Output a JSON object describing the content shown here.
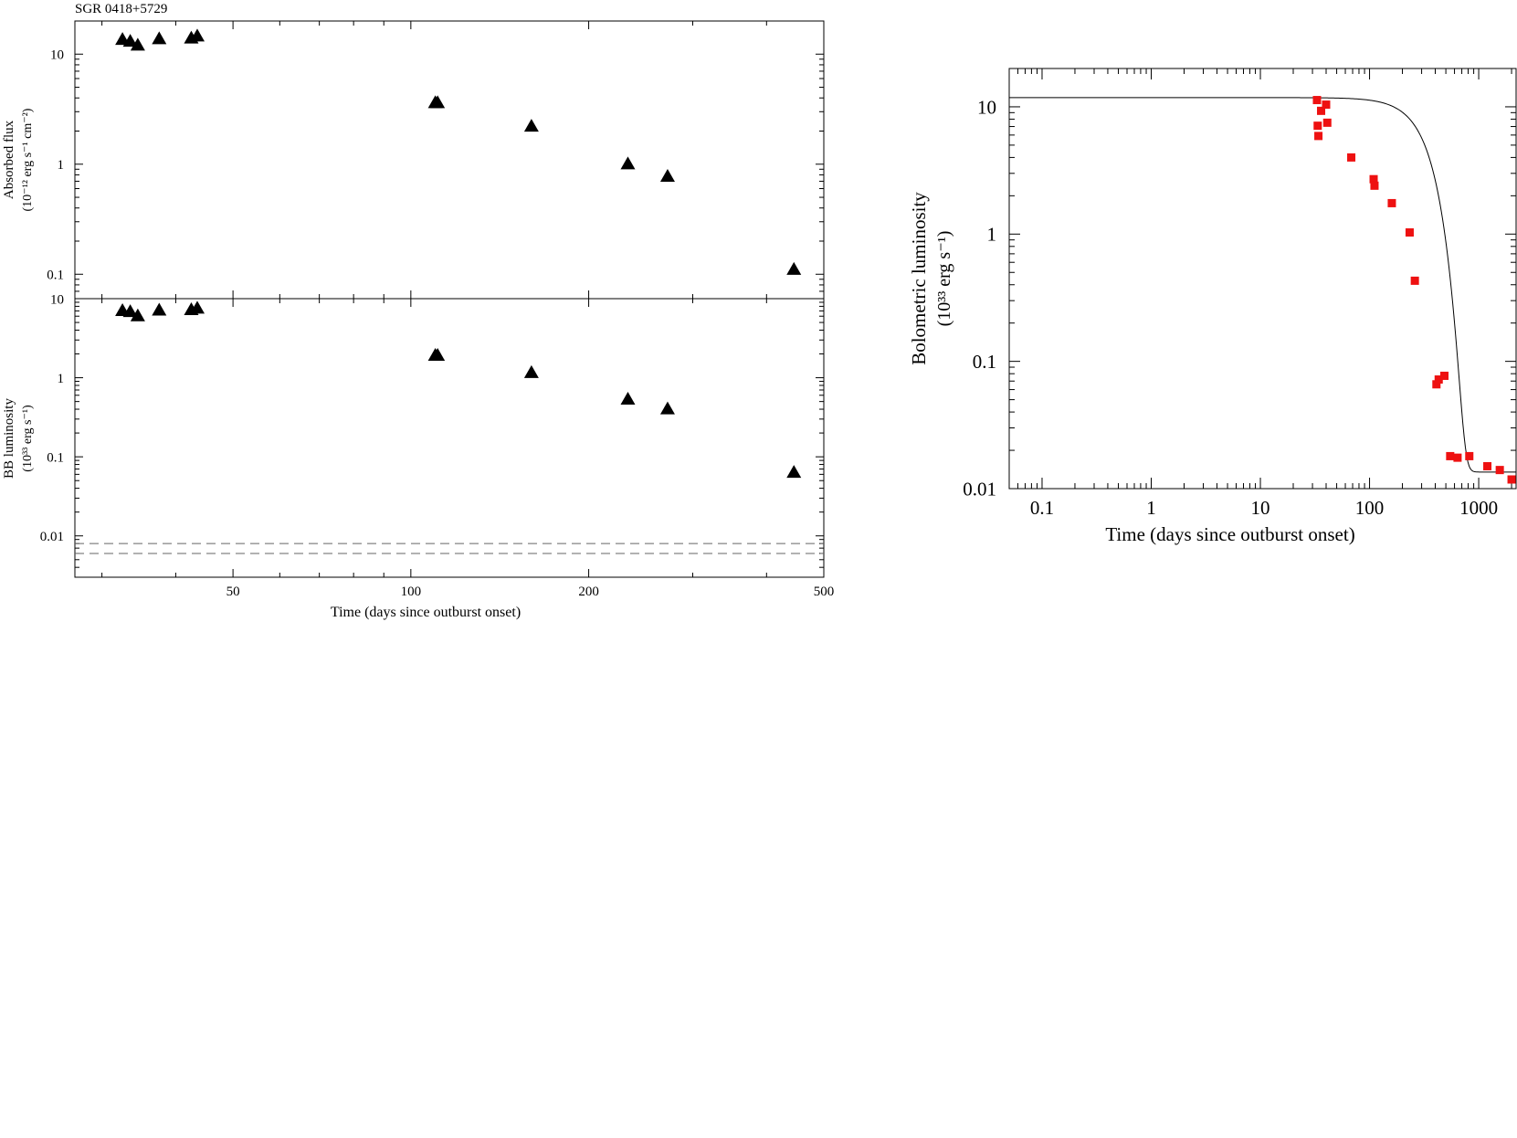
{
  "chart_data": [
    {
      "type": "scatter",
      "title": "SGR 0418+5729",
      "panel": "top-left",
      "xlabel": "Time (days since outburst onset)",
      "ylabel_line1": "Absorbed flux",
      "ylabel_line2": "(10⁻¹² erg s⁻¹ cm⁻²)",
      "xscale": "log",
      "yscale": "log",
      "xlim": [
        27,
        500
      ],
      "ylim": [
        0.06,
        20
      ],
      "xticks": [
        50,
        100,
        200,
        500
      ],
      "xtick_labels": [
        "50",
        "100",
        "200",
        "500"
      ],
      "yticks": [
        10,
        1,
        0.1
      ],
      "ytick_labels": [
        "10",
        "1",
        "0.1"
      ],
      "marker": "triangle",
      "marker_color": "#000000",
      "series": [
        {
          "x": [
            32.5,
            33.5,
            34.5,
            37.5,
            42.5,
            43.5,
            110,
            111,
            160,
            233,
            272,
            445
          ],
          "y": [
            13.5,
            13.0,
            12.0,
            13.7,
            13.9,
            14.5,
            3.6,
            3.6,
            2.2,
            1.0,
            0.77,
            0.11
          ]
        }
      ]
    },
    {
      "type": "scatter",
      "panel": "bottom-left",
      "xlabel": "Time (days since outburst onset)",
      "ylabel_line1": "BB luminosity",
      "ylabel_line2": "(10³³ erg s⁻¹)",
      "xscale": "log",
      "yscale": "log",
      "xlim": [
        27,
        500
      ],
      "ylim": [
        0.003,
        10
      ],
      "xticks": [
        50,
        100,
        200,
        500
      ],
      "xtick_labels": [
        "50",
        "100",
        "200",
        "500"
      ],
      "yticks": [
        10,
        1,
        0.1,
        0.01
      ],
      "ytick_labels": [
        "10",
        "1",
        "0.1",
        "0.01"
      ],
      "marker": "triangle",
      "marker_color": "#000000",
      "series": [
        {
          "x": [
            32.5,
            33.5,
            34.5,
            37.5,
            42.5,
            43.5,
            110,
            111,
            160,
            233,
            272,
            445
          ],
          "y": [
            7.0,
            6.8,
            6.0,
            7.1,
            7.2,
            7.5,
            1.9,
            1.9,
            1.15,
            0.53,
            0.4,
            0.063
          ]
        }
      ],
      "reference_lines": [
        0.008,
        0.006
      ],
      "reference_line_style": "dashed"
    },
    {
      "type": "scatter",
      "panel": "right",
      "xlabel": "Time (days since outburst onset)",
      "ylabel_line1": "Bolometric luminosity",
      "ylabel_line2": "(10³³ erg s⁻¹)",
      "xscale": "log",
      "yscale": "log",
      "xlim": [
        0.05,
        2200
      ],
      "ylim": [
        0.01,
        20
      ],
      "xticks": [
        0.1,
        1,
        10,
        100,
        1000
      ],
      "xtick_labels": [
        "0.1",
        "1",
        "10",
        "100",
        "1000"
      ],
      "yticks": [
        10,
        1,
        0.1,
        0.01
      ],
      "ytick_labels": [
        "10",
        "1",
        "0.1",
        "0.01"
      ],
      "marker": "square",
      "marker_color": "#ee1111",
      "fit_color": "#000000",
      "series": [
        {
          "x": [
            33,
            33.5,
            34,
            36,
            40,
            41,
            68,
            109,
            111,
            160,
            233,
            260,
            410,
            430,
            485,
            548,
            640,
            820,
            1200,
            1560,
            2000
          ],
          "y": [
            11.3,
            7.1,
            5.9,
            9.3,
            10.4,
            7.5,
            4.0,
            2.7,
            2.4,
            1.75,
            1.03,
            0.43,
            0.066,
            0.072,
            0.077,
            0.018,
            0.0175,
            0.018,
            0.015,
            0.014,
            0.0118
          ]
        }
      ],
      "fit_model": {
        "a": 11.8,
        "c": 0.0135,
        "tau": 340,
        "n": 2.5
      }
    }
  ]
}
